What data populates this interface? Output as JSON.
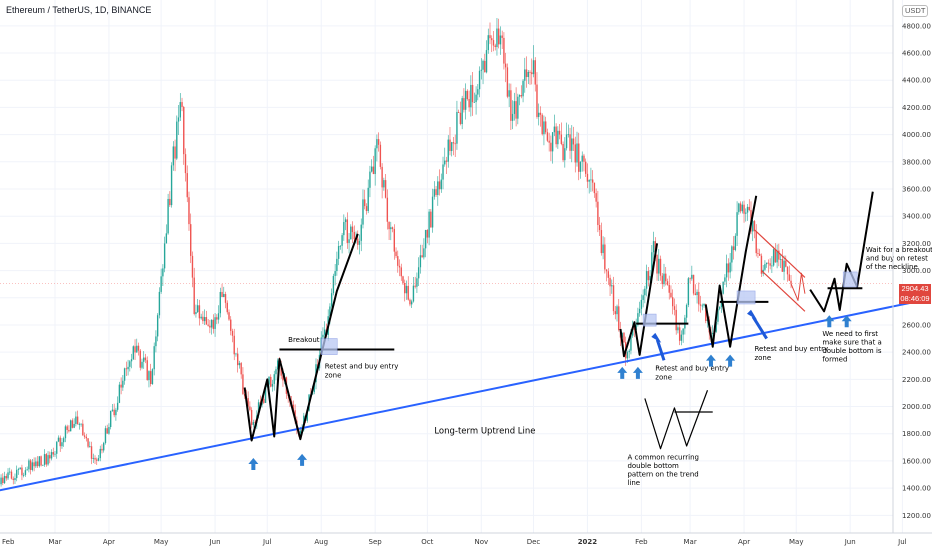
{
  "header": {
    "title": "Ethereum / TetherUS, 1D, BINANCE",
    "currency_badge": "USDT"
  },
  "last_price": {
    "value": "2904.43",
    "countdown": "08:46:09",
    "color": "#e0463e"
  },
  "chart_data": {
    "type": "candlestick",
    "title": "Ethereum / TetherUS, 1D, BINANCE",
    "y_ticks": [
      1200,
      1400,
      1600,
      1800,
      2000,
      2200,
      2400,
      2600,
      2800,
      3000,
      3200,
      3400,
      3600,
      3800,
      4000,
      4200,
      4400,
      4600,
      4800
    ],
    "ylim": [
      1070,
      4990
    ],
    "x_ticks": [
      "Mar",
      "Apr",
      "May",
      "Jun",
      "Jul",
      "Aug",
      "Sep",
      "Oct",
      "Nov",
      "Dec",
      "2022",
      "Feb",
      "Mar",
      "Apr",
      "May",
      "Jun",
      "Jul"
    ],
    "grid": true,
    "colors": {
      "up": "#26a69a",
      "down": "#ef5350",
      "annotation": "#000000",
      "trendline": "#2962ff",
      "arrow": "#2f80d0",
      "zone": "#b9c8f4",
      "wedge": "#e0463e"
    },
    "price_anchors": [
      {
        "date": "2021-02-24",
        "close": 1620
      },
      {
        "date": "2021-03-13",
        "close": 1900
      },
      {
        "date": "2021-03-25",
        "close": 1580
      },
      {
        "date": "2021-04-15",
        "close": 2450
      },
      {
        "date": "2021-04-25",
        "close": 2200
      },
      {
        "date": "2021-05-12",
        "close": 4300
      },
      {
        "date": "2021-05-20",
        "close": 2700
      },
      {
        "date": "2021-05-31",
        "close": 2650
      },
      {
        "date": "2021-06-05",
        "close": 2800
      },
      {
        "date": "2021-06-22",
        "close": 1880
      },
      {
        "date": "2021-07-07",
        "close": 2320
      },
      {
        "date": "2021-07-20",
        "close": 1780
      },
      {
        "date": "2021-08-04",
        "close": 2600
      },
      {
        "date": "2021-08-14",
        "close": 3300
      },
      {
        "date": "2021-08-22",
        "close": 3250
      },
      {
        "date": "2021-09-03",
        "close": 3950
      },
      {
        "date": "2021-09-07",
        "close": 3450
      },
      {
        "date": "2021-09-21",
        "close": 2750
      },
      {
        "date": "2021-10-06",
        "close": 3550
      },
      {
        "date": "2021-10-20",
        "close": 4150
      },
      {
        "date": "2021-10-29",
        "close": 4350
      },
      {
        "date": "2021-11-10",
        "close": 4800
      },
      {
        "date": "2021-11-19",
        "close": 4150
      },
      {
        "date": "2021-12-01",
        "close": 4600
      },
      {
        "date": "2021-12-04",
        "close": 4050
      },
      {
        "date": "2021-12-20",
        "close": 3900
      },
      {
        "date": "2021-12-28",
        "close": 3800
      },
      {
        "date": "2022-01-05",
        "close": 3600
      },
      {
        "date": "2022-01-10",
        "close": 3100
      },
      {
        "date": "2022-01-21",
        "close": 2500
      },
      {
        "date": "2022-01-24",
        "close": 2350
      },
      {
        "date": "2022-02-08",
        "close": 3150
      },
      {
        "date": "2022-02-14",
        "close": 2900
      },
      {
        "date": "2022-02-24",
        "close": 2500
      },
      {
        "date": "2022-03-01",
        "close": 2950
      },
      {
        "date": "2022-03-14",
        "close": 2550
      },
      {
        "date": "2022-03-29",
        "close": 3400
      },
      {
        "date": "2022-04-02",
        "close": 3500
      },
      {
        "date": "2022-04-11",
        "close": 3050
      },
      {
        "date": "2022-04-20",
        "close": 3100
      },
      {
        "date": "2022-04-28",
        "close": 2904
      }
    ],
    "trendline": [
      {
        "date": "2021-01-04",
        "price": 1320
      },
      {
        "date": "2022-07-16",
        "price": 2790
      }
    ],
    "annotations": {
      "breakout": "Breakout",
      "retest1": [
        "Retest and buy entry",
        "zone"
      ],
      "retest2": [
        "Retest and buy entry",
        "zone"
      ],
      "retest3": [
        "Retest and buy entry",
        "zone"
      ],
      "trendline_label": "Long-term Uptrend Line",
      "pattern_note": [
        "A common recurring",
        "double bottom",
        "pattern on the trend",
        "line"
      ],
      "double_bottom_note": [
        "We need to first",
        "make sure that a",
        "double bottom is",
        "formed"
      ],
      "breakout_note": [
        "Wait for a breakout",
        "and buy on retest",
        "of the neckline"
      ]
    }
  }
}
